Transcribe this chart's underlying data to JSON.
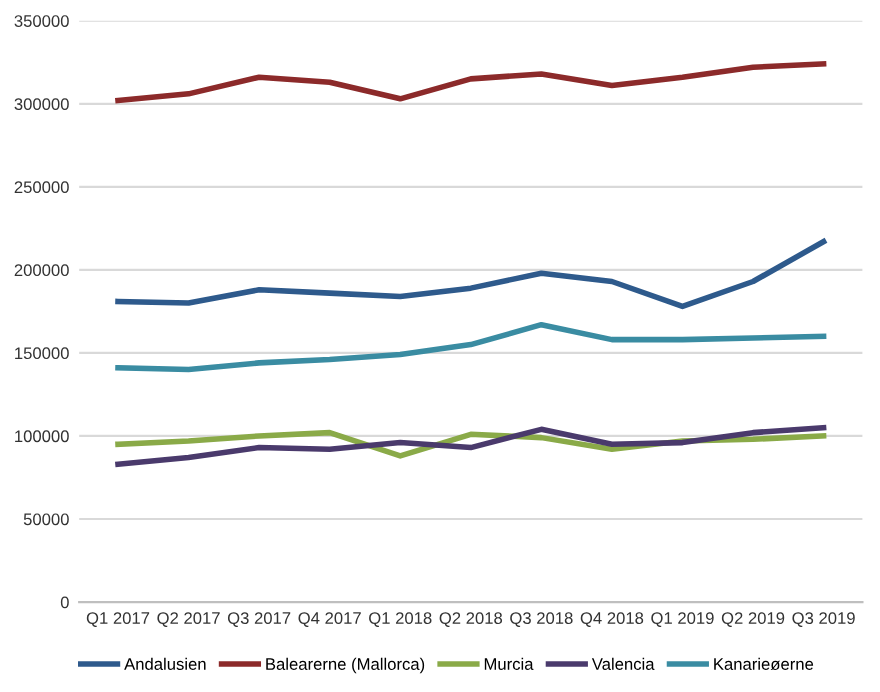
{
  "chart_data": {
    "type": "line",
    "categories": [
      "Q1 2017",
      "Q2 2017",
      "Q3 2017",
      "Q4 2017",
      "Q1 2018",
      "Q2 2018",
      "Q3 2018",
      "Q4 2018",
      "Q1 2019",
      "Q2 2019",
      "Q3 2019"
    ],
    "series": [
      {
        "name": "Andalusien",
        "color": "#2e5a8c",
        "values": [
          181000,
          180000,
          188000,
          186000,
          184000,
          189000,
          198000,
          193000,
          178000,
          193000,
          217000
        ]
      },
      {
        "name": "Balearerne (Mallorca)",
        "color": "#8c2a2a",
        "values": [
          302000,
          306000,
          316000,
          313000,
          303000,
          315000,
          318000,
          311000,
          316000,
          322000,
          324000
        ]
      },
      {
        "name": "Murcia",
        "color": "#8aaa48",
        "values": [
          95000,
          97000,
          100000,
          102000,
          88000,
          101000,
          99000,
          92000,
          97000,
          98000,
          100000
        ]
      },
      {
        "name": "Valencia",
        "color": "#4a3a6c",
        "values": [
          83000,
          87000,
          93000,
          92000,
          96000,
          93000,
          104000,
          95000,
          96000,
          102000,
          105000
        ]
      },
      {
        "name": "Kanarieøerne",
        "color": "#3a8ca2",
        "values": [
          141000,
          140000,
          144000,
          146000,
          149000,
          155000,
          167000,
          158000,
          158000,
          159000,
          160000
        ]
      }
    ],
    "ylim": [
      0,
      350000
    ],
    "yticks": [
      0,
      50000,
      100000,
      150000,
      200000,
      250000,
      300000,
      350000
    ],
    "grid": "y",
    "legend": "bottom",
    "marker": "none",
    "line_style": "solid"
  }
}
